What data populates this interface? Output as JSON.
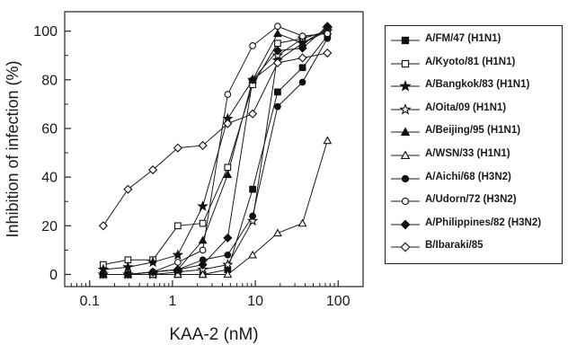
{
  "chart_data": {
    "type": "line",
    "title": "",
    "xlabel": "KAA-2 (nM)",
    "ylabel": "Inhibition of infection (%)",
    "x_scale": "log",
    "xlim": [
      0.05,
      200
    ],
    "ylim": [
      -5,
      108
    ],
    "x_tick_labels": [
      "0.1",
      "1",
      "10",
      "100"
    ],
    "x_ticks": [
      0.1,
      1,
      10,
      100
    ],
    "y_tick_labels": [
      "0",
      "20",
      "40",
      "60",
      "80",
      "100"
    ],
    "y_ticks": [
      0,
      20,
      40,
      60,
      80,
      100
    ],
    "grid": false,
    "legend_position": "right",
    "x": [
      0.146,
      0.29,
      0.58,
      1.16,
      2.32,
      4.64,
      9.28,
      18.6,
      37.1,
      74.2
    ],
    "series": [
      {
        "name": "A/FM/47 (H1N1)",
        "marker": "square-filled",
        "values": [
          0,
          0,
          0,
          0,
          0,
          2,
          35,
          75,
          85,
          98
        ]
      },
      {
        "name": "A/Kyoto/81 (H1N1)",
        "marker": "square-open",
        "values": [
          4,
          6,
          6,
          20,
          21,
          44,
          78,
          95,
          97,
          100
        ]
      },
      {
        "name": "A/Bangkok/83 (H1N1)",
        "marker": "star-filled",
        "values": [
          2,
          3,
          5,
          8,
          28,
          64,
          80,
          88,
          95,
          101
        ]
      },
      {
        "name": "A/Oita/09 (H1N1)",
        "marker": "star-open",
        "values": [
          0,
          0,
          0,
          1,
          2,
          4,
          22,
          90,
          97,
          100
        ]
      },
      {
        "name": "A/Beijing/95 (H1N1)",
        "marker": "triangle-filled",
        "values": [
          0,
          0,
          1,
          2,
          14,
          41,
          80,
          99,
          95,
          100
        ]
      },
      {
        "name": "A/WSN/33 (H1N1)",
        "marker": "triangle-open",
        "values": [
          0,
          0,
          0,
          0,
          0,
          0,
          8,
          17,
          21,
          55
        ]
      },
      {
        "name": "A/Aichi/68 (H3N2)",
        "marker": "circle-filled",
        "values": [
          0,
          0,
          1,
          2,
          6,
          8,
          24,
          69,
          79,
          97
        ]
      },
      {
        "name": "A/Udorn/72 (H3N2)",
        "marker": "circle-open",
        "values": [
          0,
          0,
          1,
          5,
          10,
          74,
          94,
          102,
          98,
          99
        ]
      },
      {
        "name": "A/Philippines/82 (H3N2)",
        "marker": "diamond-filled",
        "values": [
          0,
          0,
          1,
          2,
          4,
          15,
          80,
          92,
          93,
          102
        ]
      },
      {
        "name": "B/Ibaraki/85",
        "marker": "diamond-open",
        "values": [
          20,
          35,
          43,
          52,
          53,
          62,
          66,
          87,
          89,
          91
        ]
      }
    ]
  }
}
